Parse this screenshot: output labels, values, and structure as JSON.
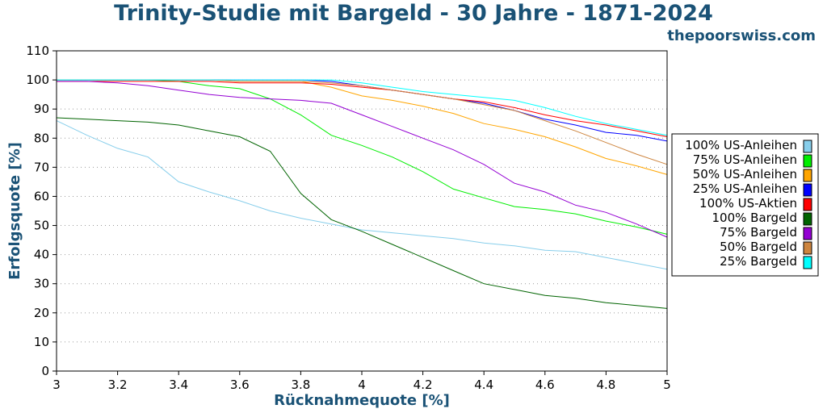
{
  "header": {
    "title": "Trinity-Studie mit Bargeld - 30 Jahre - 1871-2024",
    "site": "thepoorswiss.com"
  },
  "chart_data": {
    "type": "line",
    "title": "Trinity-Studie mit Bargeld - 30 Jahre - 1871-2024",
    "xlabel": "Rücknahmequote [%]",
    "ylabel": "Erfolgsquote [%]",
    "xlim": [
      3,
      5
    ],
    "ylim": [
      0,
      110
    ],
    "xticks": [
      "3",
      "3.2",
      "3.4",
      "3.6",
      "3.8",
      "4",
      "4.2",
      "4.4",
      "4.6",
      "4.8",
      "5"
    ],
    "yticks": [
      "0",
      "10",
      "20",
      "30",
      "40",
      "50",
      "60",
      "70",
      "80",
      "90",
      "100",
      "110"
    ],
    "grid": "horizontal dotted",
    "legend_position": "right",
    "x": [
      3.0,
      3.1,
      3.2,
      3.3,
      3.4,
      3.5,
      3.6,
      3.7,
      3.8,
      3.9,
      4.0,
      4.1,
      4.2,
      4.3,
      4.4,
      4.5,
      4.6,
      4.7,
      4.8,
      4.9,
      5.0
    ],
    "series": [
      {
        "name": "100% US-Anleihen",
        "color": "#87ceeb",
        "values": [
          86,
          81,
          76.5,
          73.5,
          65,
          61.5,
          58.5,
          55,
          52.5,
          50.5,
          48.5,
          47.5,
          46.5,
          45.5,
          44,
          43,
          41.5,
          41,
          39,
          37,
          35
        ]
      },
      {
        "name": "75% US-Anleihen",
        "color": "#00ee00",
        "values": [
          100,
          100,
          100,
          100,
          99.5,
          98,
          97,
          93.5,
          88,
          81,
          77.5,
          73.5,
          68.5,
          62.5,
          59.5,
          56.5,
          55.5,
          54,
          51.5,
          49.5,
          47
        ]
      },
      {
        "name": "50% US-Anleihen",
        "color": "#ffa500",
        "values": [
          100,
          100,
          100,
          100,
          100,
          100,
          99.5,
          99.5,
          99.5,
          97.5,
          94.5,
          93,
          91,
          88.5,
          85,
          83,
          80.5,
          77,
          73,
          70.5,
          67.5
        ]
      },
      {
        "name": "25% US-Anleihen",
        "color": "#0000ff",
        "values": [
          100,
          100,
          100,
          100,
          100,
          100,
          100,
          100,
          100,
          99.5,
          98,
          96.5,
          95,
          93.5,
          92,
          89.5,
          86.5,
          84.5,
          82,
          81,
          79
        ]
      },
      {
        "name": "100% US-Aktien",
        "color": "#ff0000",
        "values": [
          99.5,
          99.5,
          99.5,
          99.5,
          99.5,
          99.5,
          99,
          99,
          99,
          98.5,
          97.5,
          96.5,
          95,
          93.5,
          92.5,
          90.5,
          88,
          86,
          84.5,
          82.5,
          80.5
        ]
      },
      {
        "name": "100% Bargeld",
        "color": "#006400",
        "values": [
          87,
          86.5,
          86,
          85.5,
          84.5,
          82.5,
          80.5,
          75.5,
          61,
          52,
          48,
          43.5,
          39,
          34.5,
          30,
          28,
          26,
          25,
          23.5,
          22.5,
          21.5
        ]
      },
      {
        "name": "75% Bargeld",
        "color": "#9400d3",
        "values": [
          99.5,
          99.5,
          99,
          98,
          96.5,
          95,
          94,
          93.5,
          93,
          92,
          88,
          84,
          80,
          76,
          71,
          64.5,
          61.5,
          57,
          54.5,
          50.5,
          46
        ]
      },
      {
        "name": "50% Bargeld",
        "color": "#cd853f",
        "values": [
          100,
          100,
          100,
          100,
          100,
          100,
          99.5,
          99.5,
          99.5,
          99,
          98,
          96.5,
          95,
          93.5,
          91.5,
          89.5,
          86,
          82.5,
          78.5,
          74.5,
          71
        ]
      },
      {
        "name": "25% Bargeld",
        "color": "#00ffff",
        "values": [
          100,
          100,
          100,
          100,
          100,
          100,
          100,
          100,
          100,
          100,
          99,
          97.5,
          96,
          95,
          94,
          93,
          90.5,
          87.5,
          85,
          83,
          81
        ]
      }
    ]
  }
}
